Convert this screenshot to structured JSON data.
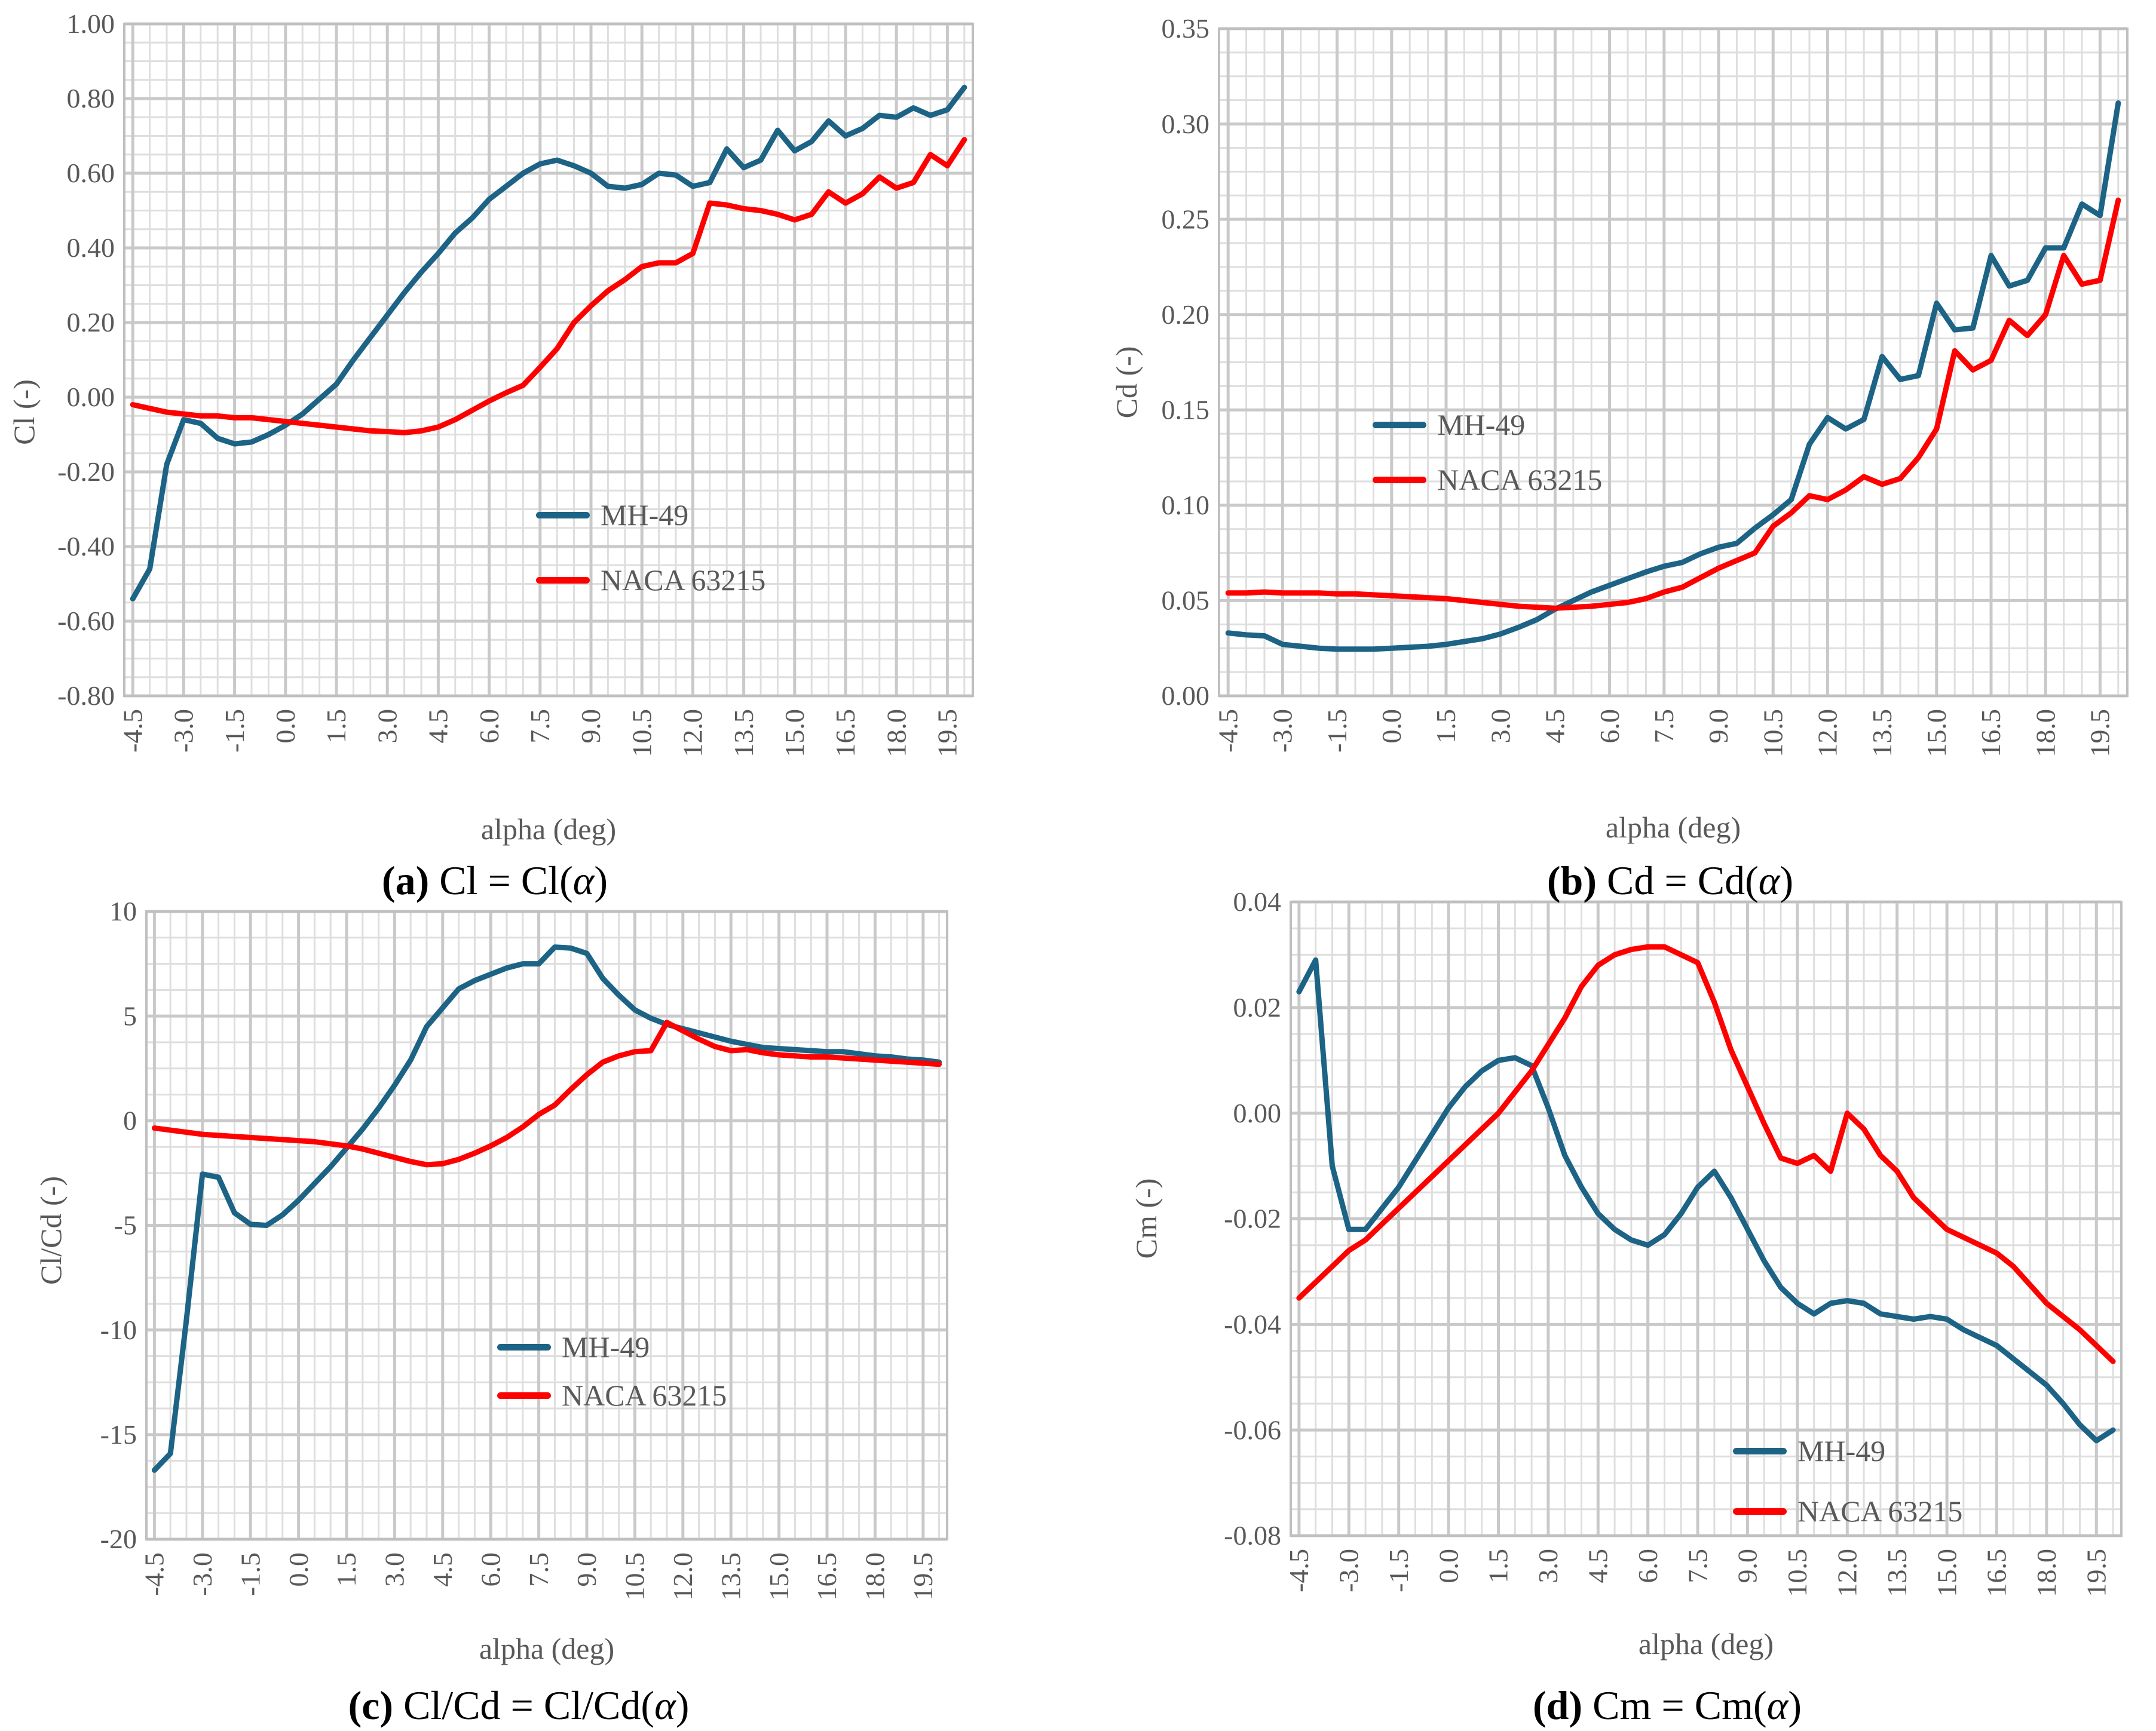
{
  "colors": {
    "mh49": "#1C6385",
    "naca": "#FF0000",
    "grid_minor": "#DEDEDE",
    "grid_major": "#C9C9C9",
    "plot_border": "#BFBFBF",
    "axis_text": "#595959",
    "caption_text": "#000000"
  },
  "x": {
    "title": "alpha (deg)",
    "tick_labels": [
      "-4.5",
      "-3.0",
      "-1.5",
      "0.0",
      "1.5",
      "3.0",
      "4.5",
      "6.0",
      "7.5",
      "9.0",
      "10.5",
      "12.0",
      "13.5",
      "15.0",
      "16.5",
      "18.0",
      "19.5"
    ],
    "categories": [
      -4.5,
      -4.0,
      -3.5,
      -3.0,
      -2.5,
      -2.0,
      -1.5,
      -1.0,
      -0.5,
      0.0,
      0.5,
      1.0,
      1.5,
      2.0,
      2.5,
      3.0,
      3.5,
      4.0,
      4.5,
      5.0,
      5.5,
      6.0,
      6.5,
      7.0,
      7.5,
      8.0,
      8.5,
      9.0,
      9.5,
      10.0,
      10.5,
      11.0,
      11.5,
      12.0,
      12.5,
      13.0,
      13.5,
      14.0,
      14.5,
      15.0,
      15.5,
      16.0,
      16.5,
      17.0,
      17.5,
      18.0,
      18.5,
      19.0,
      19.5,
      20.0
    ]
  },
  "chart_data": [
    {
      "id": "a",
      "type": "line",
      "caption": {
        "label": "(a)",
        "pre": " Cl = Cl(",
        "alpha": "α",
        "post": ")"
      },
      "xlabel": "alpha (deg)",
      "ylabel": "Cl (-)",
      "ylim": [
        -0.8,
        1.0
      ],
      "ystep": 0.2,
      "y_tick_labels": [
        "1.00",
        "0.80",
        "0.60",
        "0.40",
        "0.20",
        "0.00",
        "-0.20",
        "-0.40",
        "-0.60",
        "-0.80"
      ],
      "grid": true,
      "legend_position": "inside-lower-middle",
      "series": [
        {
          "name": "MH-49",
          "color_key": "mh49",
          "values": [
            -0.54,
            -0.46,
            -0.18,
            -0.06,
            -0.07,
            -0.11,
            -0.125,
            -0.12,
            -0.1,
            -0.075,
            -0.045,
            -0.005,
            0.035,
            0.1,
            0.16,
            0.22,
            0.28,
            0.335,
            0.385,
            0.44,
            0.48,
            0.53,
            0.565,
            0.6,
            0.625,
            0.635,
            0.62,
            0.6,
            0.565,
            0.56,
            0.57,
            0.6,
            0.595,
            0.565,
            0.575,
            0.665,
            0.615,
            0.635,
            0.715,
            0.66,
            0.685,
            0.74,
            0.7,
            0.72,
            0.755,
            0.75,
            0.775,
            0.755,
            0.77,
            0.83
          ]
        },
        {
          "name": "NACA 63215",
          "color_key": "naca",
          "values": [
            -0.02,
            -0.03,
            -0.04,
            -0.045,
            -0.05,
            -0.05,
            -0.055,
            -0.055,
            -0.06,
            -0.065,
            -0.07,
            -0.075,
            -0.08,
            -0.085,
            -0.09,
            -0.092,
            -0.095,
            -0.09,
            -0.08,
            -0.06,
            -0.035,
            -0.01,
            0.012,
            0.032,
            0.08,
            0.13,
            0.2,
            0.245,
            0.285,
            0.315,
            0.35,
            0.36,
            0.36,
            0.385,
            0.52,
            0.515,
            0.505,
            0.5,
            0.49,
            0.475,
            0.49,
            0.55,
            0.52,
            0.545,
            0.59,
            0.56,
            0.575,
            0.65,
            0.62,
            0.69
          ]
        }
      ]
    },
    {
      "id": "b",
      "type": "line",
      "caption": {
        "label": "(b)",
        "pre": " Cd = Cd(",
        "alpha": "α",
        "post": ")"
      },
      "xlabel": "alpha (deg)",
      "ylabel": "Cd (-)",
      "ylim": [
        0.0,
        0.35
      ],
      "ystep": 0.05,
      "y_tick_labels": [
        "0.35",
        "0.30",
        "0.25",
        "0.20",
        "0.15",
        "0.10",
        "0.05",
        "0.00"
      ],
      "grid": true,
      "legend_position": "inside-middle-left",
      "series": [
        {
          "name": "MH-49",
          "color_key": "mh49",
          "values": [
            0.033,
            0.032,
            0.0315,
            0.027,
            0.026,
            0.025,
            0.0245,
            0.0245,
            0.0245,
            0.025,
            0.0255,
            0.026,
            0.027,
            0.0285,
            0.03,
            0.0325,
            0.036,
            0.04,
            0.0455,
            0.05,
            0.0545,
            0.058,
            0.0615,
            0.065,
            0.068,
            0.07,
            0.0745,
            0.078,
            0.08,
            0.088,
            0.095,
            0.103,
            0.132,
            0.146,
            0.14,
            0.145,
            0.178,
            0.166,
            0.168,
            0.206,
            0.192,
            0.193,
            0.231,
            0.215,
            0.218,
            0.235,
            0.235,
            0.258,
            0.252,
            0.311
          ]
        },
        {
          "name": "NACA 63215",
          "color_key": "naca",
          "values": [
            0.054,
            0.054,
            0.0545,
            0.054,
            0.054,
            0.054,
            0.0535,
            0.0535,
            0.053,
            0.0525,
            0.052,
            0.0515,
            0.051,
            0.05,
            0.049,
            0.048,
            0.047,
            0.0465,
            0.046,
            0.0465,
            0.047,
            0.048,
            0.049,
            0.051,
            0.0545,
            0.057,
            0.062,
            0.067,
            0.071,
            0.075,
            0.089,
            0.096,
            0.105,
            0.103,
            0.108,
            0.115,
            0.111,
            0.114,
            0.125,
            0.14,
            0.181,
            0.171,
            0.176,
            0.197,
            0.189,
            0.2,
            0.231,
            0.216,
            0.218,
            0.26
          ]
        }
      ]
    },
    {
      "id": "c",
      "type": "line",
      "caption": {
        "label": "(c)",
        "pre": " Cl/Cd = Cl/Cd(",
        "alpha": "α",
        "post": ")"
      },
      "xlabel": "alpha (deg)",
      "ylabel": "Cl/Cd (-)",
      "ylim": [
        -20,
        10
      ],
      "ystep": 5,
      "y_tick_labels": [
        "10",
        "5",
        "0",
        "-5",
        "-10",
        "-15",
        "-20"
      ],
      "grid": true,
      "legend_position": "inside-lower-middle",
      "series": [
        {
          "name": "MH-49",
          "color_key": "mh49",
          "values": [
            -16.7,
            -15.9,
            -9.5,
            -2.55,
            -2.7,
            -4.4,
            -4.95,
            -5.0,
            -4.5,
            -3.8,
            -3.0,
            -2.2,
            -1.3,
            -0.4,
            0.6,
            1.7,
            2.9,
            4.5,
            5.4,
            6.3,
            6.7,
            7.0,
            7.3,
            7.5,
            7.5,
            8.3,
            8.25,
            8.0,
            6.8,
            6.0,
            5.3,
            4.9,
            4.6,
            4.4,
            4.2,
            4.0,
            3.8,
            3.65,
            3.5,
            3.45,
            3.4,
            3.35,
            3.3,
            3.3,
            3.2,
            3.1,
            3.05,
            2.95,
            2.9,
            2.8
          ]
        },
        {
          "name": "NACA 63215",
          "color_key": "naca",
          "values": [
            -0.35,
            -0.45,
            -0.55,
            -0.65,
            -0.7,
            -0.75,
            -0.8,
            -0.85,
            -0.9,
            -0.95,
            -1.0,
            -1.1,
            -1.2,
            -1.35,
            -1.55,
            -1.75,
            -1.95,
            -2.1,
            -2.05,
            -1.85,
            -1.55,
            -1.2,
            -0.8,
            -0.3,
            0.3,
            0.75,
            1.5,
            2.2,
            2.8,
            3.1,
            3.3,
            3.35,
            4.7,
            4.3,
            3.9,
            3.55,
            3.35,
            3.4,
            3.25,
            3.15,
            3.1,
            3.05,
            3.05,
            3.0,
            2.95,
            2.9,
            2.85,
            2.8,
            2.75,
            2.7
          ]
        }
      ]
    },
    {
      "id": "d",
      "type": "line",
      "caption": {
        "label": "(d)",
        "pre": " Cm = Cm(",
        "alpha": "α",
        "post": ")"
      },
      "xlabel": "alpha (deg)",
      "ylabel": "Cm (-)",
      "ylim": [
        -0.08,
        0.04
      ],
      "ystep": 0.02,
      "y_tick_labels": [
        "0.04",
        "0.02",
        "0.00",
        "-0.02",
        "-0.04",
        "-0.06",
        "-0.08"
      ],
      "grid": true,
      "legend_position": "inside-lower-right",
      "series": [
        {
          "name": "MH-49",
          "color_key": "mh49",
          "values": [
            0.023,
            0.029,
            -0.01,
            -0.022,
            -0.022,
            -0.018,
            -0.014,
            -0.009,
            -0.004,
            0.001,
            0.005,
            0.008,
            0.01,
            0.0105,
            0.009,
            0.001,
            -0.008,
            -0.014,
            -0.019,
            -0.022,
            -0.024,
            -0.025,
            -0.023,
            -0.019,
            -0.014,
            -0.011,
            -0.016,
            -0.022,
            -0.028,
            -0.033,
            -0.036,
            -0.038,
            -0.036,
            -0.0355,
            -0.036,
            -0.038,
            -0.0385,
            -0.039,
            -0.0385,
            -0.039,
            -0.041,
            -0.0425,
            -0.044,
            -0.0465,
            -0.049,
            -0.0515,
            -0.055,
            -0.059,
            -0.062,
            -0.06
          ]
        },
        {
          "name": "NACA 63215",
          "color_key": "naca",
          "values": [
            -0.035,
            -0.032,
            -0.029,
            -0.026,
            -0.024,
            -0.021,
            -0.018,
            -0.015,
            -0.012,
            -0.009,
            -0.006,
            -0.003,
            0.0,
            0.004,
            0.008,
            0.013,
            0.018,
            0.024,
            0.028,
            0.03,
            0.031,
            0.0315,
            0.0315,
            0.03,
            0.0285,
            0.021,
            0.012,
            0.005,
            -0.002,
            -0.0085,
            -0.0095,
            -0.008,
            -0.011,
            0.0,
            -0.003,
            -0.008,
            -0.011,
            -0.016,
            -0.019,
            -0.022,
            -0.0235,
            -0.025,
            -0.0265,
            -0.029,
            -0.0325,
            -0.036,
            -0.0385,
            -0.041,
            -0.044,
            -0.047
          ]
        }
      ]
    }
  ]
}
